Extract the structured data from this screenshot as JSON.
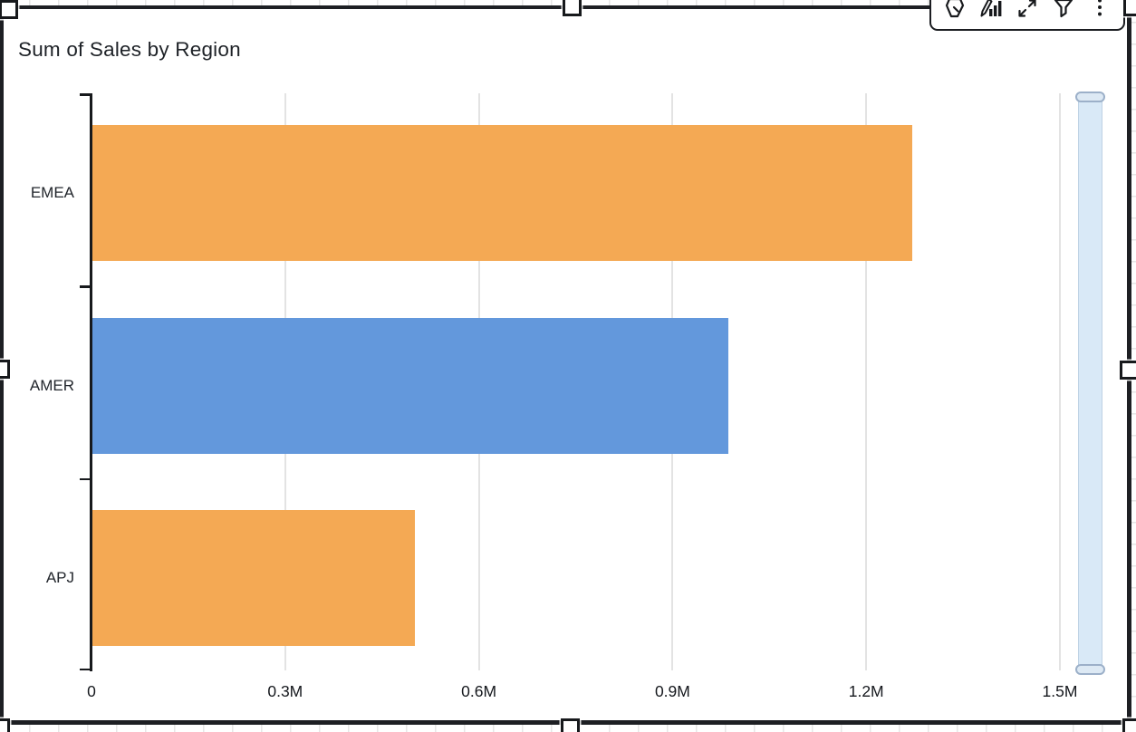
{
  "visual": {
    "title": "Sum of Sales by Region",
    "state": "selected"
  },
  "toolbar": {
    "icon_names": [
      "pen-hexagon-icon",
      "format-visual-icon",
      "expand-icon",
      "filter-icon",
      "menu-options-icon"
    ]
  },
  "colors": {
    "bar_orange": "#F4A954",
    "bar_blue": "#6398DC",
    "axis": "#17191C",
    "gridline": "#E3E3E3",
    "scrollbar_fill": "#D9E9F7",
    "scrollbar_handle_border": "#9CB0C9",
    "selection_border": "#1D1F23"
  },
  "chart_data": {
    "type": "bar",
    "orientation": "horizontal",
    "title": "Sum of Sales by Region",
    "categories": [
      "EMEA",
      "AMER",
      "APJ"
    ],
    "values": [
      1270000,
      985000,
      500000
    ],
    "bar_colors": [
      "#F4A954",
      "#6398DC",
      "#F4A954"
    ],
    "x_ticks": [
      {
        "label": "0",
        "value": 0
      },
      {
        "label": "0.3M",
        "value": 300000
      },
      {
        "label": "0.6M",
        "value": 600000
      },
      {
        "label": "0.9M",
        "value": 900000
      },
      {
        "label": "1.2M",
        "value": 1200000
      },
      {
        "label": "1.5M",
        "value": 1500000
      }
    ],
    "xlim": [
      0,
      1500000
    ],
    "xlabel": "",
    "ylabel": "",
    "grid": true,
    "legend": false
  }
}
